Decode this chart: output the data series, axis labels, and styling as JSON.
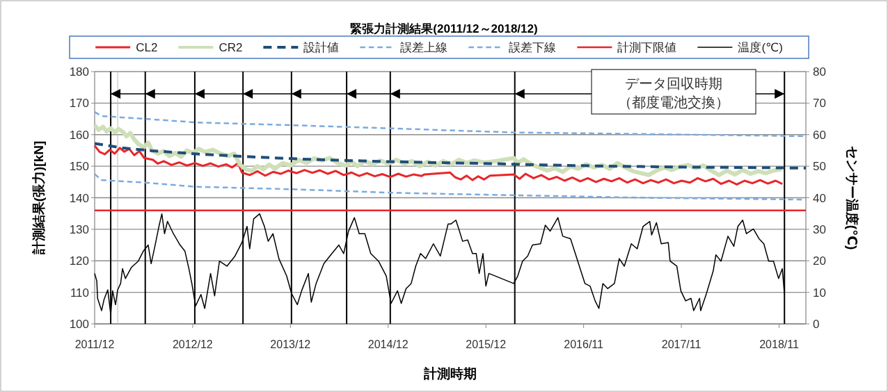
{
  "chart_data": {
    "type": "line",
    "title": "緊張力計測結果(2011/12～2018/12)",
    "xlabel": "計測時期",
    "ylabel": "計測結果(張力)[kN]",
    "y2label": "センサー温度(℃)",
    "annotations": [
      "データ回収時期",
      "（都度電池交換）"
    ],
    "xlim": [
      "2011-12-01",
      "2019-03-10"
    ],
    "xticks": [
      {
        "value": "2011-12-01",
        "label": "2011/12"
      },
      {
        "value": "2012-12-01",
        "label": "2012/12"
      },
      {
        "value": "2013-12-01",
        "label": "2013/12"
      },
      {
        "value": "2014-12-01",
        "label": "2014/12"
      },
      {
        "value": "2015-12-01",
        "label": "2015/12"
      },
      {
        "value": "2016-11-30",
        "label": "2016/11"
      },
      {
        "value": "2017-11-30",
        "label": "2017/11"
      },
      {
        "value": "2018-11-30",
        "label": "2018/11"
      }
    ],
    "ylim": [
      100,
      180
    ],
    "yticks": [
      100,
      110,
      120,
      130,
      140,
      150,
      160,
      170,
      180
    ],
    "y2lim": [
      0,
      80
    ],
    "y2ticks": [
      0,
      10,
      20,
      30,
      40,
      50,
      60,
      70,
      80
    ],
    "grid": "y",
    "legend": "top",
    "ref_lines": [
      {
        "axis": "x",
        "value": "2012-01-30",
        "color": "#000000"
      },
      {
        "axis": "x",
        "value": "2012-02-25",
        "color": "#bbbbbb"
      },
      {
        "axis": "x",
        "value": "2012-06-07",
        "color": "#000000"
      },
      {
        "axis": "x",
        "value": "2012-12-09",
        "color": "#000000"
      },
      {
        "axis": "x",
        "value": "2013-06-07",
        "color": "#000000"
      },
      {
        "axis": "x",
        "value": "2013-12-05",
        "color": "#000000"
      },
      {
        "axis": "x",
        "value": "2014-06-29",
        "color": "#000000"
      },
      {
        "axis": "x",
        "value": "2014-12-09",
        "color": "#000000"
      },
      {
        "axis": "x",
        "value": "2016-03-18",
        "color": "#000000"
      },
      {
        "axis": "x",
        "value": "2018-12-20",
        "color": "#000000"
      }
    ],
    "series": [
      {
        "name": "CL2",
        "color": "#e8262b",
        "line_style": "solid",
        "x": [
          "2011-12-01",
          "2011-12-20",
          "2012-01-08",
          "2012-01-26",
          "2012-02-14",
          "2012-03-04",
          "2012-03-21",
          "2012-04-08",
          "2012-04-27",
          "2012-05-16",
          "2012-06-03",
          "2012-07-06",
          "2012-07-24",
          "2012-08-15",
          "2012-09-13",
          "2012-10-12",
          "2012-11-09",
          "2012-12-09",
          "2013-01-08",
          "2013-02-06",
          "2013-03-07",
          "2013-04-05",
          "2013-04-27",
          "2013-05-19",
          "2013-06-03",
          "2013-07-02",
          "2013-07-31",
          "2013-08-29",
          "2013-09-27",
          "2013-10-26",
          "2013-11-24",
          "2013-12-24",
          "2014-01-23",
          "2014-02-21",
          "2014-03-21",
          "2014-04-20",
          "2014-05-19",
          "2014-06-18",
          "2014-07-17",
          "2014-08-15",
          "2014-09-13",
          "2014-10-12",
          "2014-11-09",
          "2014-12-09",
          "2015-01-08",
          "2015-02-06",
          "2015-03-07",
          "2015-04-05",
          "2015-04-16",
          "2015-07-20",
          "2015-08-08",
          "2015-08-29",
          "2015-09-20",
          "2015-10-12",
          "2015-11-02",
          "2015-11-24",
          "2015-12-16",
          "2016-03-14",
          "2016-04-05",
          "2016-04-27",
          "2016-05-27",
          "2016-06-25",
          "2016-07-24",
          "2016-08-22",
          "2016-09-20",
          "2016-10-19",
          "2016-11-17",
          "2016-12-16",
          "2017-01-15",
          "2017-02-14",
          "2017-03-14",
          "2017-04-12",
          "2017-05-12",
          "2017-06-10",
          "2017-07-10",
          "2017-08-08",
          "2017-09-05",
          "2017-10-04",
          "2017-11-02",
          "2017-12-01",
          "2018-01-01",
          "2018-01-30",
          "2018-02-28",
          "2018-03-29",
          "2018-04-27",
          "2018-05-27",
          "2018-06-25",
          "2018-07-24",
          "2018-08-22",
          "2018-09-20",
          "2018-10-19",
          "2018-11-17",
          "2018-12-12"
        ],
        "values": [
          156.5,
          154.5,
          153.8,
          155.2,
          154.0,
          155.8,
          154.6,
          155.5,
          153.5,
          154.8,
          152.6,
          152.0,
          150.8,
          151.6,
          150.4,
          151.2,
          150.2,
          151.0,
          150.1,
          150.9,
          149.9,
          150.6,
          149.6,
          151.0,
          148.0,
          147.2,
          148.4,
          147.0,
          148.2,
          147.6,
          148.6,
          147.8,
          148.8,
          147.9,
          148.7,
          147.6,
          148.5,
          147.2,
          148.0,
          146.9,
          147.8,
          146.8,
          147.5,
          146.6,
          147.6,
          146.7,
          147.4,
          146.9,
          147.4,
          148.0,
          146.5,
          145.8,
          147.0,
          145.6,
          146.8,
          145.8,
          147.0,
          147.4,
          146.0,
          147.6,
          146.2,
          147.2,
          145.8,
          146.6,
          145.4,
          146.4,
          145.2,
          146.2,
          145.0,
          146.0,
          145.2,
          146.2,
          144.8,
          145.8,
          144.6,
          145.6,
          144.8,
          145.8,
          144.6,
          145.4,
          144.8,
          146.2,
          145.2,
          146.0,
          144.4,
          145.4,
          144.2,
          145.4,
          144.6,
          145.6,
          144.5,
          145.4,
          144.4
        ]
      },
      {
        "name": "CR2",
        "color": "#cfdfb8",
        "line_style": "solid",
        "x": [
          "2011-12-01",
          "2011-12-16",
          "2012-01-01",
          "2012-01-15",
          "2012-01-30",
          "2012-02-14",
          "2012-02-28",
          "2012-03-14",
          "2012-03-29",
          "2012-04-12",
          "2012-04-27",
          "2012-05-12",
          "2012-06-03",
          "2012-06-18",
          "2012-07-02",
          "2012-07-24",
          "2012-08-15",
          "2012-09-05",
          "2012-09-27",
          "2012-10-19",
          "2012-11-09",
          "2012-12-01",
          "2012-12-24",
          "2013-01-15",
          "2013-02-14",
          "2013-03-14",
          "2013-04-12",
          "2013-05-05",
          "2013-05-27",
          "2013-06-18",
          "2013-07-10",
          "2013-07-31",
          "2013-08-22",
          "2013-09-13",
          "2013-10-04",
          "2013-11-02",
          "2013-12-01",
          "2014-01-01",
          "2014-01-30",
          "2014-02-28",
          "2014-03-29",
          "2014-04-27",
          "2014-05-27",
          "2014-06-25",
          "2014-07-17",
          "2014-08-08",
          "2014-09-05",
          "2014-10-04",
          "2014-11-02",
          "2014-12-01",
          "2015-01-01",
          "2015-01-30",
          "2015-02-28",
          "2015-03-29",
          "2015-04-27",
          "2015-05-27",
          "2015-06-25",
          "2015-07-24",
          "2015-08-22",
          "2015-09-20",
          "2015-10-19",
          "2015-11-24",
          "2016-01-01",
          "2016-03-14",
          "2016-03-29",
          "2016-04-20",
          "2016-05-19",
          "2016-06-18",
          "2016-07-17",
          "2016-08-15",
          "2016-09-13",
          "2016-10-12",
          "2016-11-09",
          "2016-12-09",
          "2017-01-08",
          "2017-02-06",
          "2017-03-07",
          "2017-04-05",
          "2017-05-05",
          "2017-06-03",
          "2017-07-02",
          "2017-07-31",
          "2017-08-29",
          "2017-09-27",
          "2017-10-26",
          "2017-11-24",
          "2017-12-24",
          "2018-01-23",
          "2018-02-21",
          "2018-03-21",
          "2018-04-20",
          "2018-05-19",
          "2018-06-18",
          "2018-07-17",
          "2018-08-15",
          "2018-09-13",
          "2018-10-12",
          "2018-11-09",
          "2018-12-09"
        ],
        "values": [
          163.0,
          161.5,
          162.5,
          161.0,
          162.0,
          160.8,
          161.8,
          161.0,
          159.5,
          160.5,
          158.5,
          157.0,
          156.0,
          157.5,
          155.0,
          154.0,
          154.8,
          153.2,
          154.2,
          153.0,
          155.0,
          154.2,
          155.5,
          154.5,
          155.2,
          154.0,
          153.2,
          154.0,
          150.5,
          149.0,
          148.5,
          150.0,
          149.0,
          150.5,
          149.2,
          151.0,
          150.2,
          152.0,
          151.0,
          152.5,
          151.8,
          152.6,
          151.0,
          150.2,
          151.5,
          150.0,
          151.6,
          150.6,
          151.8,
          150.8,
          152.0,
          150.8,
          151.6,
          150.0,
          151.4,
          150.2,
          151.6,
          150.6,
          152.0,
          151.0,
          151.8,
          151.2,
          151.5,
          152.6,
          151.0,
          152.2,
          150.6,
          149.6,
          148.6,
          149.4,
          148.2,
          150.0,
          149.2,
          150.6,
          149.6,
          150.4,
          149.2,
          151.0,
          149.6,
          148.4,
          147.8,
          147.2,
          148.6,
          149.6,
          148.8,
          149.8,
          150.4,
          149.4,
          150.2,
          148.6,
          147.2,
          148.6,
          147.4,
          148.8,
          147.6,
          148.4,
          147.8,
          148.6,
          149.0
        ]
      },
      {
        "name": "設計値",
        "color": "#1f4e79",
        "line_style": "dashed",
        "x": [
          "2011-12-01",
          "2012-03-14",
          "2012-07-02",
          "2013-01-01",
          "2013-07-02",
          "2014-01-01",
          "2014-07-02",
          "2015-01-01",
          "2015-07-02",
          "2016-01-01",
          "2016-07-02",
          "2017-01-01",
          "2017-07-02",
          "2018-01-01",
          "2018-07-02",
          "2019-03-10"
        ],
        "values": [
          157.2,
          155.8,
          154.9,
          153.8,
          153.0,
          152.3,
          151.8,
          151.4,
          151.1,
          150.8,
          150.4,
          150.1,
          149.9,
          149.7,
          149.6,
          149.4
        ]
      },
      {
        "name": "誤差上線",
        "color": "#7aabdf",
        "line_style": "dashed",
        "x": [
          "2011-12-01",
          "2011-12-27",
          "2012-06-07",
          "2012-12-09",
          "2013-12-05",
          "2014-12-12",
          "2015-07-06",
          "2016-03-14",
          "2017-07-17",
          "2019-03-10"
        ],
        "values": [
          167.2,
          165.9,
          165.0,
          163.9,
          163.0,
          162.0,
          161.4,
          160.7,
          160.2,
          159.5
        ]
      },
      {
        "name": "誤差下線",
        "color": "#7aabdf",
        "line_style": "dashed",
        "x": [
          "2011-12-01",
          "2011-12-27",
          "2012-06-07",
          "2012-12-09",
          "2013-12-05",
          "2014-12-12",
          "2015-07-06",
          "2016-03-14",
          "2017-07-17",
          "2019-03-10"
        ],
        "values": [
          147.5,
          145.6,
          144.8,
          143.5,
          142.7,
          141.6,
          141.2,
          140.8,
          140.0,
          139.4
        ]
      },
      {
        "name": "計測下限値",
        "color": "#e8262b",
        "line_style": "solid",
        "x": [
          "2011-12-01",
          "2019-03-10"
        ],
        "values": [
          136,
          136
        ]
      },
      {
        "name": "温度(℃)",
        "color": "#000000",
        "line_style": "solid",
        "axis": "y2",
        "x": [
          "2011-12-01",
          "2011-12-09",
          "2011-12-12",
          "2011-12-27",
          "2012-01-05",
          "2012-01-19",
          "2012-01-30",
          "2012-02-06",
          "2012-02-17",
          "2012-02-25",
          "2012-03-07",
          "2012-03-14",
          "2012-03-25",
          "2012-04-16",
          "2012-05-12",
          "2012-05-31",
          "2012-06-18",
          "2012-06-29",
          "2012-07-13",
          "2012-07-28",
          "2012-08-08",
          "2012-08-18",
          "2012-08-29",
          "2012-09-20",
          "2012-10-15",
          "2012-11-02",
          "2012-11-17",
          "2012-11-28",
          "2012-12-12",
          "2013-01-01",
          "2013-01-15",
          "2013-02-06",
          "2013-02-21",
          "2013-03-11",
          "2013-04-08",
          "2013-05-08",
          "2013-06-03",
          "2013-06-22",
          "2013-07-02",
          "2013-07-17",
          "2013-08-08",
          "2013-08-26",
          "2013-09-09",
          "2013-09-27",
          "2013-10-19",
          "2013-11-17",
          "2013-12-05",
          "2013-12-27",
          "2014-01-12",
          "2014-02-06",
          "2014-02-17",
          "2014-03-07",
          "2014-04-05",
          "2014-05-05",
          "2014-05-31",
          "2014-06-18",
          "2014-07-06",
          "2014-07-28",
          "2014-08-15",
          "2014-09-05",
          "2014-09-27",
          "2014-10-26",
          "2014-11-24",
          "2014-12-12",
          "2015-01-05",
          "2015-01-19",
          "2015-02-06",
          "2015-02-25",
          "2015-03-14",
          "2015-04-01",
          "2015-04-20",
          "2015-05-19",
          "2015-06-14",
          "2015-07-13",
          "2015-07-24",
          "2015-08-11",
          "2015-08-22",
          "2015-09-05",
          "2015-09-24",
          "2015-10-12",
          "2015-10-26",
          "2015-11-06",
          "2015-11-20",
          "2015-12-01",
          "2015-12-12",
          "2016-03-14",
          "2016-03-29",
          "2016-04-16",
          "2016-05-05",
          "2016-05-23",
          "2016-06-22",
          "2016-07-10",
          "2016-07-28",
          "2016-08-26",
          "2016-09-13",
          "2016-10-12",
          "2016-10-30",
          "2016-11-17",
          "2016-12-05",
          "2016-12-24",
          "2017-01-12",
          "2017-01-26",
          "2017-02-10",
          "2017-02-28",
          "2017-03-25",
          "2017-04-12",
          "2017-05-01",
          "2017-05-27",
          "2017-06-18",
          "2017-07-10",
          "2017-08-04",
          "2017-08-11",
          "2017-08-29",
          "2017-09-16",
          "2017-10-12",
          "2017-10-19",
          "2017-11-13",
          "2017-11-28",
          "2017-12-16",
          "2018-01-05",
          "2018-01-15",
          "2018-02-06",
          "2018-02-10",
          "2018-03-04",
          "2018-03-29",
          "2018-04-08",
          "2018-04-27",
          "2018-05-23",
          "2018-06-14",
          "2018-06-29",
          "2018-07-17",
          "2018-07-31",
          "2018-08-26",
          "2018-09-16",
          "2018-10-04",
          "2018-10-22",
          "2018-11-09",
          "2018-11-28",
          "2018-12-12",
          "2018-12-20"
        ],
        "values": [
          16.0,
          13.6,
          8.1,
          4.2,
          7.7,
          10.8,
          3.0,
          10.5,
          6.1,
          10.8,
          12.8,
          17.5,
          14.4,
          17.9,
          19.9,
          23.1,
          25.0,
          19.1,
          24.6,
          30.9,
          34.9,
          28.6,
          32.5,
          28.6,
          25.0,
          23.1,
          17.5,
          12.8,
          5.7,
          9.3,
          4.9,
          16.0,
          8.9,
          19.9,
          18.3,
          21.5,
          25.8,
          30.9,
          23.8,
          33.3,
          34.9,
          30.9,
          26.2,
          28.6,
          20.7,
          15.2,
          9.7,
          6.1,
          10.5,
          16.0,
          6.9,
          12.8,
          19.1,
          22.3,
          25.0,
          22.3,
          29.4,
          33.7,
          28.6,
          28.6,
          22.3,
          19.9,
          15.2,
          6.5,
          10.5,
          6.5,
          11.2,
          12.8,
          18.3,
          22.3,
          20.7,
          25.4,
          21.5,
          31.7,
          31.7,
          32.9,
          30.1,
          26.2,
          26.6,
          22.3,
          22.3,
          16.0,
          22.3,
          12.0,
          16.0,
          12.8,
          15.2,
          19.9,
          21.5,
          25.0,
          25.4,
          31.3,
          29.4,
          33.7,
          27.8,
          27.0,
          22.3,
          17.5,
          12.8,
          12.0,
          7.3,
          4.9,
          12.8,
          11.2,
          12.8,
          20.7,
          18.3,
          25.4,
          23.8,
          30.9,
          32.5,
          28.2,
          32.1,
          25.4,
          25.8,
          19.9,
          18.3,
          10.5,
          7.3,
          8.1,
          4.2,
          8.1,
          4.2,
          9.7,
          16.8,
          21.9,
          19.9,
          27.8,
          24.6,
          30.9,
          32.9,
          28.6,
          30.1,
          27.0,
          25.4,
          19.9,
          19.9,
          14.4,
          17.5,
          9.3
        ]
      }
    ]
  }
}
